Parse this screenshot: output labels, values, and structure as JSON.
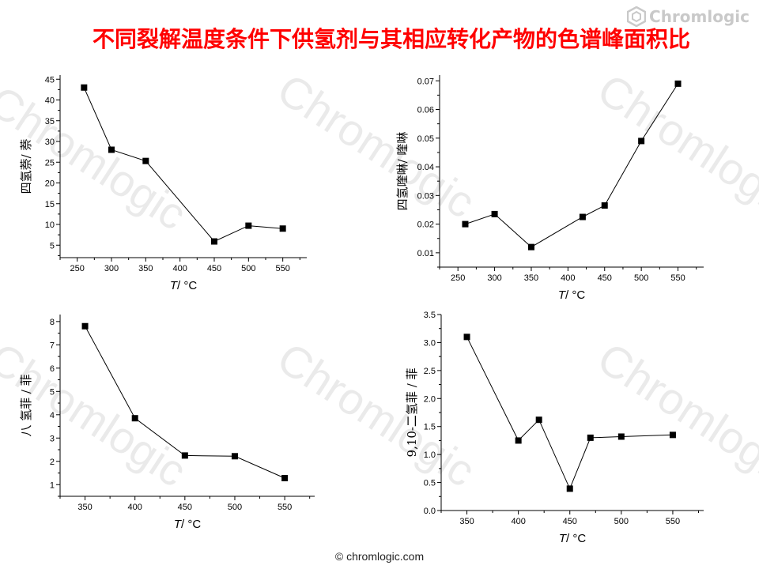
{
  "title": "不同裂解温度条件下供氢剂与其相应转化产物的色谱峰面积比",
  "title_color": "#ff0000",
  "logo": {
    "text": "Chromlogic",
    "icon": "hexagon-icon"
  },
  "footer": "© chromlogic.com",
  "watermark": "Chromlogic",
  "chart_data": [
    {
      "type": "line",
      "ylabel": "四氢萘/ 萘",
      "xlabel_italic": "T",
      "xlabel_rest": "/ °C",
      "xlim": [
        225,
        585
      ],
      "ylim": [
        2,
        46
      ],
      "xticks": [
        250,
        300,
        350,
        400,
        450,
        500,
        550
      ],
      "yticks": [
        5,
        10,
        15,
        20,
        25,
        30,
        35,
        40,
        45
      ],
      "x": [
        260,
        300,
        350,
        450,
        500,
        550
      ],
      "y": [
        43.0,
        28.0,
        25.3,
        5.9,
        9.7,
        9.0
      ],
      "marker": "square",
      "grid": false
    },
    {
      "type": "line",
      "ylabel": "四氢喹啉/ 喹啉",
      "xlabel_italic": "T",
      "xlabel_rest": "/ °C",
      "xlim": [
        225,
        585
      ],
      "ylim": [
        0.005,
        0.072
      ],
      "xticks": [
        250,
        300,
        350,
        400,
        450,
        500,
        550
      ],
      "yticks": [
        0.01,
        0.02,
        0.03,
        0.04,
        0.05,
        0.06,
        0.07
      ],
      "x": [
        260,
        300,
        350,
        420,
        450,
        500,
        550
      ],
      "y": [
        0.02,
        0.0235,
        0.012,
        0.0225,
        0.0265,
        0.049,
        0.069
      ],
      "marker": "square",
      "grid": false
    },
    {
      "type": "line",
      "ylabel": "八 氢菲 / 菲",
      "xlabel_italic": "T",
      "xlabel_rest": "/ °C",
      "xlim": [
        325,
        580
      ],
      "ylim": [
        0.5,
        8.3
      ],
      "xticks": [
        350,
        400,
        450,
        500,
        550
      ],
      "yticks": [
        1,
        2,
        3,
        4,
        5,
        6,
        7,
        8
      ],
      "x": [
        350,
        400,
        450,
        500,
        550
      ],
      "y": [
        7.8,
        3.85,
        2.25,
        2.22,
        1.28
      ],
      "marker": "square",
      "grid": false
    },
    {
      "type": "line",
      "ylabel": "9,10-二氢菲 / 菲",
      "xlabel_italic": "T",
      "xlabel_rest": "/ °C",
      "xlim": [
        325,
        580
      ],
      "ylim": [
        0.0,
        3.5
      ],
      "xticks": [
        350,
        400,
        450,
        500,
        550
      ],
      "yticks": [
        0.0,
        0.5,
        1.0,
        1.5,
        2.0,
        2.5,
        3.0,
        3.5
      ],
      "x": [
        350,
        400,
        420,
        450,
        470,
        500,
        550
      ],
      "y": [
        3.1,
        1.25,
        1.62,
        0.39,
        1.3,
        1.32,
        1.35
      ],
      "marker": "square",
      "grid": false
    }
  ]
}
